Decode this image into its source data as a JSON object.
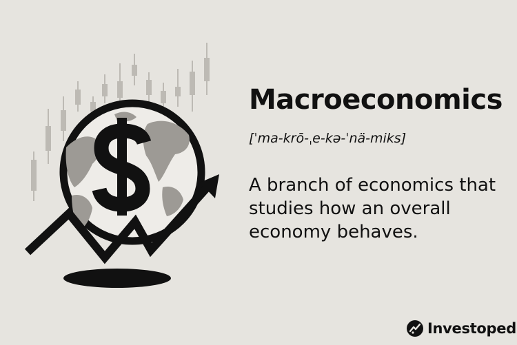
{
  "term": {
    "title": "Macroeconomics",
    "pronunciation": "[ˈma-krō-ˌe-kə-ˈnä-miks]",
    "definition": "A branch of economics that studies how an overall economy behaves."
  },
  "illustration": {
    "icons": [
      "candlestick-chart-icon",
      "globe-icon",
      "dollar-sign-icon",
      "trend-arrow-icon"
    ]
  },
  "brand": {
    "name": "Investopedia",
    "icon": "investopedia-logo-icon"
  },
  "colors": {
    "background": "#e6e4df",
    "ink": "#111111",
    "candles": "#bdbab4",
    "globe_fill": "#eeece8",
    "continents": "#9d9a95"
  }
}
